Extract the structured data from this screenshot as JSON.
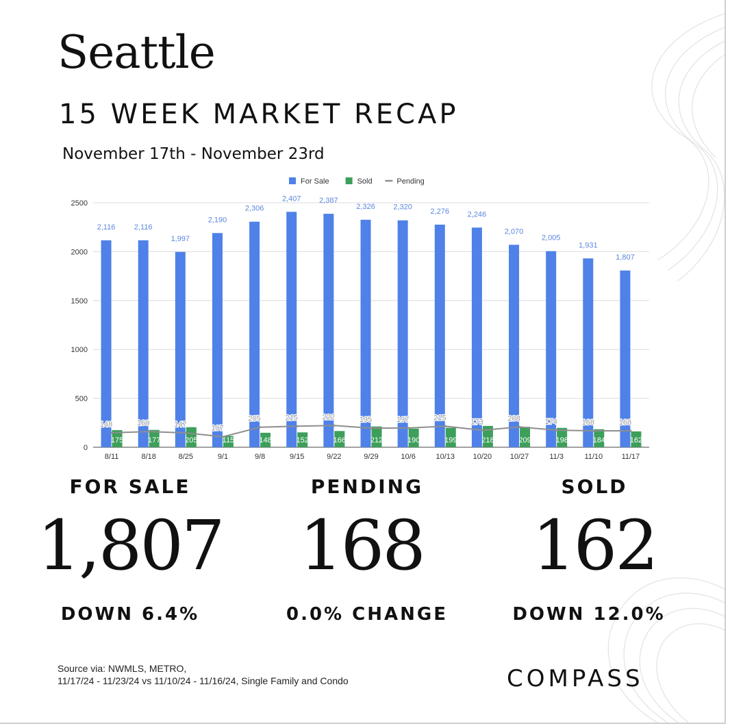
{
  "header": {
    "city": "Seattle",
    "subtitle": "15 WEEK MARKET RECAP",
    "date_range": "November 17th - November 23rd"
  },
  "chart_data": {
    "type": "bar",
    "categories": [
      "8/11",
      "8/18",
      "8/25",
      "9/1",
      "9/8",
      "9/15",
      "9/22",
      "9/29",
      "10/6",
      "10/13",
      "10/20",
      "10/27",
      "11/3",
      "11/10",
      "11/17"
    ],
    "series": [
      {
        "name": "For Sale",
        "type": "bar",
        "color": "#4f81e8",
        "values": [
          2116,
          2116,
          1997,
          2190,
          2306,
          2407,
          2387,
          2326,
          2320,
          2276,
          2246,
          2070,
          2005,
          1931,
          1807
        ],
        "labels": [
          "2,116",
          "2,116",
          "1,997",
          "2,190",
          "2,306",
          "2,407",
          "2,387",
          "2,326",
          "2,320",
          "2,276",
          "2,246",
          "2,070",
          "2,005",
          "1,931",
          "1,807"
        ]
      },
      {
        "name": "Sold",
        "type": "bar",
        "color": "#3d9f5a",
        "values": [
          175,
          177,
          205,
          115,
          148,
          152,
          166,
          212,
          190,
          199,
          218,
          209,
          198,
          184,
          162
        ],
        "labels": [
          "175",
          "177",
          "205",
          "115",
          "148",
          "152",
          "166",
          "212",
          "190",
          "199",
          "218",
          "209",
          "198",
          "184",
          "162"
        ]
      },
      {
        "name": "Pending",
        "type": "line",
        "color": "#8e8e8e",
        "values": [
          148,
          160,
          147,
          107,
          205,
          215,
          222,
          195,
          197,
          215,
          173,
          208,
          174,
          168,
          168
        ],
        "labels": [
          "148",
          "160",
          "147",
          "107",
          "205",
          "215",
          "222",
          "195",
          "197",
          "215",
          "173",
          "208",
          "174",
          "168",
          "168"
        ]
      }
    ],
    "ylim": [
      0,
      2500
    ],
    "yticks": [
      0,
      500,
      1000,
      1500,
      2000,
      2500
    ],
    "ytick_labels": [
      "0",
      "500",
      "1000",
      "1500",
      "2000",
      "2500"
    ],
    "grid": true,
    "legend": "top-center"
  },
  "stats": [
    {
      "label": "FOR SALE",
      "value": "1,807",
      "change": "DOWN 6.4%"
    },
    {
      "label": "PENDING",
      "value": "168",
      "change": "0.0% CHANGE"
    },
    {
      "label": "SOLD",
      "value": "162",
      "change": "DOWN 12.0%"
    }
  ],
  "footer": {
    "source_line1": "Source via: NWMLS, METRO,",
    "source_line2": "11/17/24 - 11/23/24 vs 11/10/24 - 11/16/24, Single Family and Condo",
    "logo": "COMPASS"
  }
}
